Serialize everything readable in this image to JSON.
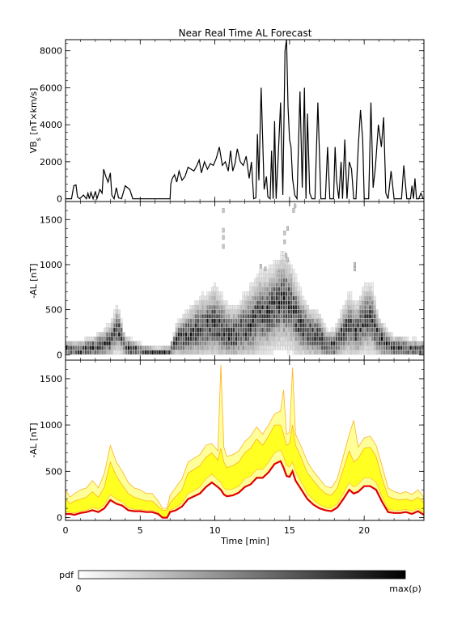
{
  "figure": {
    "title": "Near Real Time AL Forecast",
    "colorbar": {
      "label": "pdf",
      "min_label": "0",
      "max_label": "max(p)",
      "from": "#ffffff",
      "to": "#000000"
    }
  },
  "chart_data": [
    {
      "type": "line",
      "panel": "top",
      "ylabel": "VB",
      "ylabel_sub": "s",
      "ylabel_units": " [nT×km/s]",
      "xlim": [
        0,
        24
      ],
      "ylim": [
        -150,
        8600
      ],
      "yticks": [
        0,
        2000,
        4000,
        6000,
        8000
      ],
      "xticks": [
        0,
        5,
        10,
        15,
        20
      ],
      "show_xticklabels": false,
      "line_color": "#000000",
      "series": [
        {
          "x": [
            0,
            0.4,
            0.55,
            0.7,
            0.8,
            0.95,
            1.2,
            1.4,
            1.5,
            1.6,
            1.7,
            1.85,
            2.0,
            2.1,
            2.3,
            2.45,
            2.55,
            2.7,
            2.85,
            3.0,
            3.1,
            3.25,
            3.4,
            3.55,
            3.75,
            4.0,
            4.15,
            4.3,
            4.5,
            4.7,
            4.85,
            5.2,
            6.0,
            6.8,
            7.0,
            7.05,
            7.15,
            7.3,
            7.45,
            7.6,
            7.8,
            8.0,
            8.2,
            8.4,
            8.6,
            8.8,
            8.95,
            9.1,
            9.3,
            9.5,
            9.7,
            9.9,
            10.1,
            10.3,
            10.5,
            10.7,
            10.9,
            11.05,
            11.2,
            11.35,
            11.5,
            11.7,
            11.9,
            12.1,
            12.3,
            12.45,
            12.6,
            12.75,
            12.85,
            12.95,
            13.1,
            13.3,
            13.45,
            13.55,
            13.7,
            13.8,
            13.9,
            14.0,
            14.1,
            14.25,
            14.4,
            14.55,
            14.7,
            14.8,
            14.9,
            15.0,
            15.1,
            15.2,
            15.35,
            15.5,
            15.7,
            15.85,
            16.0,
            16.1,
            16.2,
            16.35,
            16.5,
            16.7,
            16.9,
            17.1,
            17.25,
            17.4,
            17.55,
            17.7,
            17.85,
            17.95,
            18.05,
            18.15,
            18.3,
            18.45,
            18.55,
            18.7,
            18.85,
            19.0,
            19.15,
            19.3,
            19.45,
            19.6,
            19.75,
            19.9,
            20.0,
            20.1,
            20.2,
            20.3,
            20.45,
            20.6,
            20.75,
            20.95,
            21.15,
            21.3,
            21.45,
            21.6,
            21.8,
            22.0,
            22.2,
            22.35,
            22.5,
            22.65,
            22.85,
            23.0,
            23.1,
            23.2,
            23.3,
            23.4,
            23.5,
            23.65,
            23.8,
            23.95
          ],
          "y": [
            0,
            0,
            700,
            750,
            100,
            0,
            200,
            0,
            300,
            0,
            350,
            0,
            400,
            0,
            500,
            300,
            1600,
            1200,
            900,
            1400,
            200,
            0,
            600,
            50,
            0,
            700,
            600,
            500,
            0,
            0,
            0,
            0,
            0,
            0,
            0,
            800,
            1100,
            1300,
            900,
            1500,
            1000,
            1200,
            1700,
            1600,
            1500,
            1800,
            2100,
            1400,
            2000,
            1600,
            1900,
            1800,
            2200,
            2800,
            1800,
            2000,
            1500,
            2600,
            1500,
            1900,
            2700,
            2000,
            1800,
            2300,
            1100,
            2000,
            0,
            50,
            3500,
            1000,
            6000,
            500,
            1200,
            100,
            0,
            2600,
            0,
            4200,
            0,
            2400,
            5200,
            200,
            8000,
            8600,
            5000,
            3200,
            2800,
            1100,
            200,
            0,
            5800,
            600,
            6000,
            0,
            4600,
            300,
            0,
            0,
            5200,
            0,
            0,
            0,
            2800,
            0,
            0,
            0,
            2800,
            1000,
            0,
            2000,
            0,
            3200,
            0,
            2000,
            1600,
            0,
            0,
            2800,
            4800,
            3200,
            0,
            0,
            0,
            0,
            5200,
            600,
            1700,
            4000,
            2800,
            4400,
            300,
            0,
            1500,
            0,
            0,
            0,
            0,
            1800,
            0,
            0,
            0,
            700,
            0,
            1100,
            0,
            0,
            300,
            0
          ]
        }
      ]
    },
    {
      "type": "heatmap",
      "panel": "middle",
      "ylabel": "-AL [nT]",
      "xlim": [
        0,
        24
      ],
      "ylim": [
        -60,
        1700
      ],
      "yticks": [
        0,
        500,
        1000,
        1500
      ],
      "xticks": [
        0,
        5,
        10,
        15,
        20
      ],
      "show_xticklabels": false,
      "colormap": "white-to-black (pdf)",
      "cell_size": {
        "x_min": 0.16,
        "y_nT": 50
      },
      "center_x": [
        0,
        1,
        2,
        3,
        3.5,
        4,
        5,
        6,
        7,
        7.5,
        8,
        8.5,
        9,
        9.5,
        10,
        10.5,
        11,
        11.5,
        12,
        12.5,
        13,
        13.5,
        14,
        14.5,
        15,
        15.5,
        16,
        16.5,
        17,
        17.5,
        18,
        18.5,
        19,
        19.5,
        20,
        20.5,
        21,
        21.5,
        22,
        22.5,
        23,
        23.5,
        24
      ],
      "center_y": [
        60,
        50,
        80,
        150,
        300,
        80,
        40,
        20,
        30,
        180,
        200,
        250,
        280,
        320,
        350,
        280,
        220,
        230,
        300,
        350,
        450,
        450,
        520,
        600,
        560,
        400,
        280,
        230,
        200,
        100,
        100,
        220,
        330,
        250,
        380,
        400,
        180,
        120,
        80,
        80,
        60,
        60,
        50
      ],
      "spread": [
        50,
        50,
        60,
        90,
        120,
        60,
        40,
        30,
        30,
        90,
        120,
        140,
        160,
        170,
        190,
        170,
        140,
        140,
        170,
        190,
        210,
        210,
        220,
        240,
        230,
        190,
        150,
        130,
        120,
        80,
        80,
        120,
        160,
        140,
        170,
        180,
        110,
        80,
        60,
        60,
        50,
        50,
        50
      ],
      "outliers": [
        {
          "x": 10.5,
          "y": 1200
        },
        {
          "x": 10.5,
          "y": 1300
        },
        {
          "x": 10.5,
          "y": 1380
        },
        {
          "x": 10.5,
          "y": 1600
        },
        {
          "x": 14.6,
          "y": 1250
        },
        {
          "x": 14.6,
          "y": 1350
        },
        {
          "x": 14.8,
          "y": 1400
        },
        {
          "x": 15.2,
          "y": 1600
        },
        {
          "x": 15.3,
          "y": 1650
        },
        {
          "x": 14.8,
          "y": 1050
        },
        {
          "x": 14.7,
          "y": 1100
        },
        {
          "x": 19.3,
          "y": 1000
        },
        {
          "x": 19.3,
          "y": 950
        },
        {
          "x": 13.0,
          "y": 980
        },
        {
          "x": 13.3,
          "y": 950
        },
        {
          "x": 14.2,
          "y": 900
        }
      ]
    },
    {
      "type": "area",
      "panel": "bottom",
      "ylabel": "-AL [nT]",
      "xlabel": "Time [min]",
      "xlim": [
        0,
        24
      ],
      "ylim": [
        -30,
        1700
      ],
      "yticks": [
        0,
        500,
        1000,
        1500
      ],
      "xticks": [
        0,
        5,
        10,
        15,
        20
      ],
      "xticklabels": [
        "0",
        "5",
        "10",
        "15",
        "20"
      ],
      "band_color": "#ffff22",
      "band_outer_color": "#ffff99",
      "envelope_color": "#ffb020",
      "median_color": "#e00000",
      "x": [
        0,
        0.3,
        0.6,
        1.0,
        1.4,
        1.8,
        2.2,
        2.6,
        3.0,
        3.4,
        3.8,
        4.2,
        4.6,
        5.0,
        5.4,
        5.8,
        6.2,
        6.5,
        6.8,
        7.0,
        7.4,
        7.8,
        8.2,
        8.6,
        9.0,
        9.4,
        9.8,
        10.2,
        10.4,
        10.6,
        10.8,
        11.2,
        11.6,
        12.0,
        12.4,
        12.8,
        13.2,
        13.6,
        14.0,
        14.4,
        14.6,
        14.8,
        15.0,
        15.2,
        15.4,
        15.8,
        16.2,
        16.6,
        17.0,
        17.4,
        17.8,
        18.2,
        18.6,
        19.0,
        19.3,
        19.6,
        20.0,
        20.4,
        20.8,
        21.2,
        21.6,
        22.0,
        22.4,
        22.8,
        23.2,
        23.6,
        24.0
      ],
      "median": [
        40,
        40,
        30,
        50,
        60,
        80,
        60,
        100,
        190,
        150,
        130,
        80,
        70,
        70,
        60,
        60,
        40,
        0,
        0,
        60,
        80,
        120,
        200,
        230,
        260,
        330,
        380,
        330,
        300,
        250,
        230,
        240,
        270,
        330,
        360,
        430,
        430,
        490,
        580,
        610,
        540,
        450,
        440,
        500,
        400,
        300,
        200,
        140,
        100,
        80,
        70,
        110,
        200,
        300,
        260,
        280,
        340,
        340,
        300,
        170,
        60,
        50,
        50,
        60,
        40,
        70,
        30
      ],
      "band_lo": [
        60,
        60,
        50,
        70,
        80,
        110,
        90,
        140,
        250,
        200,
        170,
        110,
        90,
        90,
        80,
        80,
        60,
        0,
        0,
        80,
        110,
        160,
        260,
        290,
        330,
        420,
        470,
        410,
        380,
        320,
        300,
        310,
        340,
        420,
        450,
        520,
        520,
        600,
        700,
        730,
        660,
        560,
        550,
        600,
        500,
        380,
        260,
        190,
        140,
        110,
        100,
        150,
        260,
        380,
        330,
        360,
        430,
        430,
        380,
        230,
        90,
        80,
        80,
        90,
        70,
        100,
        50
      ],
      "band_hi": [
        200,
        150,
        180,
        200,
        220,
        280,
        220,
        330,
        600,
        450,
        350,
        260,
        220,
        200,
        180,
        180,
        120,
        80,
        80,
        160,
        230,
        300,
        480,
        520,
        560,
        650,
        700,
        620,
        750,
        600,
        540,
        560,
        600,
        700,
        750,
        850,
        780,
        880,
        1000,
        1000,
        900,
        780,
        800,
        1000,
        780,
        640,
        480,
        400,
        320,
        260,
        240,
        320,
        520,
        720,
        600,
        640,
        750,
        760,
        660,
        420,
        230,
        200,
        190,
        200,
        180,
        220,
        160
      ],
      "envelope_hi": [
        300,
        220,
        260,
        300,
        320,
        400,
        320,
        480,
        780,
        600,
        500,
        380,
        320,
        300,
        260,
        260,
        180,
        100,
        100,
        240,
        330,
        420,
        600,
        640,
        680,
        780,
        800,
        720,
        1650,
        760,
        660,
        680,
        720,
        820,
        880,
        980,
        900,
        1000,
        1120,
        1150,
        1380,
        900,
        920,
        1620,
        900,
        760,
        600,
        500,
        420,
        340,
        320,
        420,
        660,
        900,
        1050,
        760,
        860,
        880,
        780,
        560,
        320,
        280,
        260,
        280,
        250,
        300,
        220
      ]
    }
  ]
}
